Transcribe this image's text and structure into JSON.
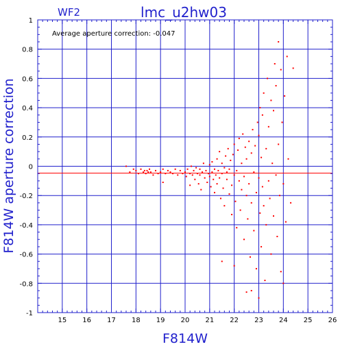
{
  "chart_data": {
    "type": "scatter",
    "title": "lmc_u2hw03",
    "subtitle": "WF2",
    "annotation": "Average aperture correction: -0.047",
    "xlabel": "F814W",
    "ylabel": "F814W aperture correction",
    "xlim": [
      14,
      26
    ],
    "ylim": [
      -1,
      1
    ],
    "xticks": [
      "15",
      "16",
      "17",
      "18",
      "19",
      "20",
      "21",
      "22",
      "23",
      "24",
      "25",
      "26"
    ],
    "yticks": [
      "-1",
      "-0.8",
      "-0.6",
      "-0.4",
      "-0.2",
      "0",
      "0.2",
      "0.4",
      "0.6",
      "0.8",
      "1"
    ],
    "grid": true,
    "reference_lines": [
      {
        "axis": "y",
        "value": 0,
        "color": "#1f1fcc"
      },
      {
        "axis": "y",
        "value": -0.047,
        "color": "#ff0000"
      }
    ],
    "colors": {
      "frame": "#1f1fcc",
      "grid": "#1f1fcc",
      "points": "#ff0000"
    },
    "series": [
      {
        "points": [
          [
            17.6,
            0.0
          ],
          [
            17.75,
            -0.04
          ],
          [
            17.9,
            -0.02
          ],
          [
            18.0,
            -0.03
          ],
          [
            18.1,
            -0.05
          ],
          [
            18.2,
            -0.02
          ],
          [
            18.3,
            -0.04
          ],
          [
            18.35,
            -0.03
          ],
          [
            18.4,
            -0.05
          ],
          [
            18.45,
            -0.03
          ],
          [
            18.5,
            -0.04
          ],
          [
            18.55,
            -0.02
          ],
          [
            18.6,
            -0.04
          ],
          [
            18.7,
            -0.06
          ],
          [
            18.8,
            -0.03
          ],
          [
            18.9,
            -0.05
          ],
          [
            19.0,
            -0.04
          ],
          [
            19.1,
            -0.02
          ],
          [
            19.2,
            -0.05
          ],
          [
            19.3,
            -0.03
          ],
          [
            19.1,
            -0.11
          ],
          [
            19.4,
            -0.04
          ],
          [
            19.5,
            -0.05
          ],
          [
            19.6,
            -0.02
          ],
          [
            19.7,
            -0.06
          ],
          [
            19.8,
            -0.03
          ],
          [
            19.9,
            -0.05
          ],
          [
            20.0,
            -0.04
          ],
          [
            20.05,
            -0.07
          ],
          [
            20.1,
            -0.02
          ],
          [
            20.2,
            -0.05
          ],
          [
            20.2,
            -0.13
          ],
          [
            20.25,
            0.0
          ],
          [
            20.3,
            -0.06
          ],
          [
            20.35,
            -0.03
          ],
          [
            20.4,
            -0.09
          ],
          [
            20.45,
            -0.01
          ],
          [
            20.5,
            -0.05
          ],
          [
            20.55,
            -0.12
          ],
          [
            20.6,
            -0.02
          ],
          [
            20.6,
            -0.06
          ],
          [
            20.65,
            -0.16
          ],
          [
            20.7,
            -0.04
          ],
          [
            20.75,
            0.02
          ],
          [
            20.8,
            -0.08
          ],
          [
            20.85,
            -0.03
          ],
          [
            20.9,
            -0.11
          ],
          [
            20.95,
            -0.05
          ],
          [
            21.0,
            0.01
          ],
          [
            21.0,
            -0.07
          ],
          [
            21.05,
            -0.14
          ],
          [
            21.1,
            -0.04
          ],
          [
            21.1,
            0.03
          ],
          [
            21.15,
            -0.09
          ],
          [
            21.2,
            -0.02
          ],
          [
            21.2,
            -0.18
          ],
          [
            21.25,
            -0.06
          ],
          [
            21.3,
            0.05
          ],
          [
            21.3,
            -0.12
          ],
          [
            21.35,
            -0.03
          ],
          [
            21.4,
            -0.08
          ],
          [
            21.4,
            0.1
          ],
          [
            21.45,
            -0.22
          ],
          [
            21.5,
            -0.05
          ],
          [
            21.5,
            0.02
          ],
          [
            21.55,
            -0.15
          ],
          [
            21.6,
            -0.01
          ],
          [
            21.6,
            -0.27
          ],
          [
            21.65,
            0.07
          ],
          [
            21.7,
            -0.09
          ],
          [
            21.7,
            -0.04
          ],
          [
            21.75,
            0.12
          ],
          [
            21.8,
            -0.19
          ],
          [
            21.8,
            -0.02
          ],
          [
            21.85,
            0.04
          ],
          [
            21.9,
            -0.13
          ],
          [
            21.9,
            -0.33
          ],
          [
            21.95,
            0.08
          ],
          [
            22.0,
            -0.06
          ],
          [
            22.0,
            0.15
          ],
          [
            22.05,
            -0.24
          ],
          [
            22.1,
            -0.03
          ],
          [
            22.1,
            -0.42
          ],
          [
            22.15,
            0.11
          ],
          [
            22.2,
            -0.1
          ],
          [
            22.2,
            0.19
          ],
          [
            22.25,
            -0.3
          ],
          [
            22.3,
            0.02
          ],
          [
            22.3,
            -0.16
          ],
          [
            22.35,
            0.22
          ],
          [
            22.4,
            -0.07
          ],
          [
            22.4,
            -0.5
          ],
          [
            22.45,
            0.13
          ],
          [
            22.5,
            -0.2
          ],
          [
            22.5,
            0.05
          ],
          [
            22.55,
            -0.36
          ],
          [
            22.6,
            0.17
          ],
          [
            22.6,
            -0.12
          ],
          [
            22.65,
            -0.62
          ],
          [
            22.7,
            0.09
          ],
          [
            22.7,
            -0.25
          ],
          [
            22.75,
            0.25
          ],
          [
            22.8,
            -0.04
          ],
          [
            22.8,
            -0.44
          ],
          [
            22.85,
            0.14
          ],
          [
            22.9,
            -0.18
          ],
          [
            22.9,
            -0.7
          ],
          [
            22.95,
            0.3
          ],
          [
            23.0,
            -0.08
          ],
          [
            23.0,
            0.21
          ],
          [
            23.05,
            -0.32
          ],
          [
            23.05,
            0.4
          ],
          [
            23.1,
            -0.55
          ],
          [
            23.1,
            0.06
          ],
          [
            23.15,
            -0.14
          ],
          [
            23.15,
            0.35
          ],
          [
            23.2,
            -0.27
          ],
          [
            23.2,
            0.5
          ],
          [
            23.25,
            -0.78
          ],
          [
            23.3,
            0.12
          ],
          [
            23.3,
            -0.4
          ],
          [
            23.35,
            0.6
          ],
          [
            23.4,
            -0.1
          ],
          [
            23.4,
            0.27
          ],
          [
            23.45,
            -0.22
          ],
          [
            23.5,
            0.45
          ],
          [
            23.5,
            -0.6
          ],
          [
            23.55,
            0.02
          ],
          [
            23.6,
            0.38
          ],
          [
            23.6,
            -0.34
          ],
          [
            23.65,
            0.7
          ],
          [
            23.7,
            -0.06
          ],
          [
            23.7,
            0.55
          ],
          [
            23.75,
            -0.48
          ],
          [
            23.8,
            0.85
          ],
          [
            23.8,
            0.15
          ],
          [
            23.85,
            -0.2
          ],
          [
            23.9,
            0.66
          ],
          [
            23.9,
            -0.72
          ],
          [
            23.95,
            0.3
          ],
          [
            24.0,
            -0.12
          ],
          [
            24.05,
            0.48
          ],
          [
            24.1,
            -0.38
          ],
          [
            24.15,
            0.75
          ],
          [
            24.2,
            0.05
          ],
          [
            24.3,
            -0.25
          ],
          [
            24.4,
            0.67
          ],
          [
            24.0,
            -0.8
          ],
          [
            22.5,
            -0.86
          ],
          [
            22.7,
            -0.85
          ],
          [
            21.5,
            -0.65
          ],
          [
            22.0,
            -0.68
          ],
          [
            23.0,
            -0.9
          ]
        ]
      }
    ]
  }
}
